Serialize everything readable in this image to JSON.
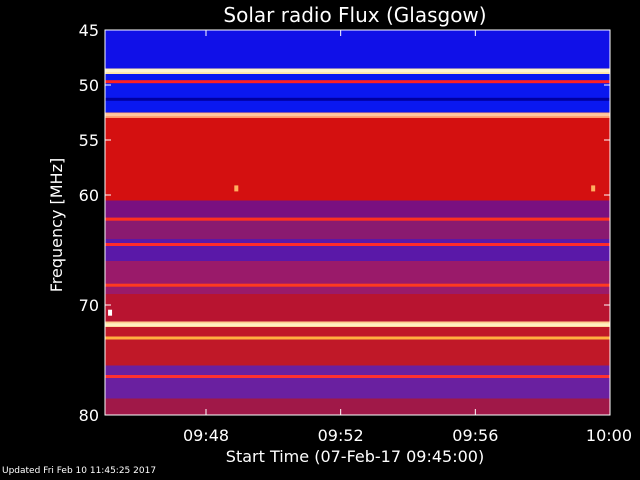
{
  "chart_data": {
    "type": "heatmap",
    "title": "Solar radio Flux (Glasgow)",
    "xlabel": "Start Time (07-Feb-17 09:45:00)",
    "ylabel": "Frequency [MHz]",
    "x_ticks": [
      "09:48",
      "09:52",
      "09:56",
      "10:00"
    ],
    "x_tick_minutes": [
      3,
      7,
      11,
      15
    ],
    "xlim_minutes": [
      0,
      15
    ],
    "y_ticks": [
      45,
      50,
      55,
      60,
      70,
      80
    ],
    "ylim": [
      45,
      80
    ],
    "grid": false,
    "bands": [
      {
        "from": 45,
        "to": 48.5,
        "color": "#1010e8"
      },
      {
        "from": 48.5,
        "to": 49.0,
        "color": "#ffe6a8"
      },
      {
        "from": 49.0,
        "to": 52.5,
        "color": "#0a18f0"
      },
      {
        "from": 52.5,
        "to": 53.0,
        "color": "#ff9a6a"
      },
      {
        "from": 53.0,
        "to": 60.5,
        "color": "#d41010"
      },
      {
        "from": 60.5,
        "to": 62.0,
        "color": "#7a1080"
      },
      {
        "from": 62.0,
        "to": 64.0,
        "color": "#8a1a70"
      },
      {
        "from": 64.0,
        "to": 66.0,
        "color": "#5a18a8"
      },
      {
        "from": 66.0,
        "to": 69.0,
        "color": "#9a1a6a"
      },
      {
        "from": 69.0,
        "to": 71.5,
        "color": "#b81430"
      },
      {
        "from": 71.5,
        "to": 72.0,
        "color": "#ffd090"
      },
      {
        "from": 72.0,
        "to": 75.5,
        "color": "#c01828"
      },
      {
        "from": 75.5,
        "to": 78.5,
        "color": "#6a20a0"
      },
      {
        "from": 78.5,
        "to": 80.0,
        "color": "#a01848"
      }
    ],
    "lines": [
      {
        "freq": 48.7,
        "color": "#fff6d0"
      },
      {
        "freq": 49.7,
        "color": "#ff2020"
      },
      {
        "freq": 51.3,
        "color": "#0000a0"
      },
      {
        "freq": 52.7,
        "color": "#ffc8a0"
      },
      {
        "freq": 62.2,
        "color": "#ff3020"
      },
      {
        "freq": 64.5,
        "color": "#ff2a2a"
      },
      {
        "freq": 68.2,
        "color": "#ff3a20"
      },
      {
        "freq": 71.8,
        "color": "#fff0c0"
      },
      {
        "freq": 73.0,
        "color": "#ffb040"
      },
      {
        "freq": 76.5,
        "color": "#ff3030"
      }
    ],
    "events": [
      {
        "minute": 3.9,
        "freq": 59.4,
        "color": "#ffb060"
      },
      {
        "minute": 14.5,
        "freq": 59.4,
        "color": "#ffb060"
      },
      {
        "minute": 0.15,
        "freq": 70.7,
        "color": "#ffffff"
      }
    ]
  },
  "footer": {
    "updated": "Updated Fri Feb 10 11:45:25 2017"
  }
}
